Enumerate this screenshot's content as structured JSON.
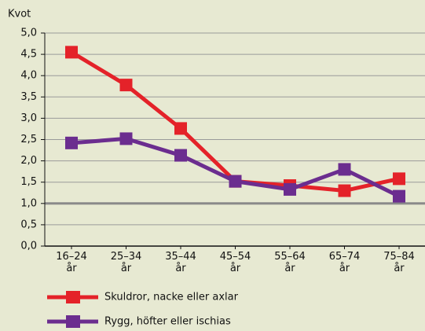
{
  "chart_data": {
    "type": "line",
    "y_label": "Kvot",
    "categories": [
      "16–24 år",
      "25–34 år",
      "35–44 år",
      "45–54 år",
      "55–64 år",
      "65–74 år",
      "75–84 år"
    ],
    "series": [
      {
        "name": "Skuldror, nacke eller axlar",
        "color": "#e42229",
        "values": [
          4.55,
          3.78,
          2.76,
          1.52,
          1.42,
          1.3,
          1.58
        ]
      },
      {
        "name": "Rygg, höfter eller ischias",
        "color": "#6b2d8f",
        "values": [
          2.42,
          2.52,
          2.13,
          1.52,
          1.33,
          1.8,
          1.17
        ]
      }
    ],
    "ylim": [
      0,
      5
    ],
    "yticks": [
      {
        "value": 0,
        "label": "0,0"
      },
      {
        "value": 0.5,
        "label": "0,5"
      },
      {
        "value": 1,
        "label": "1,0"
      },
      {
        "value": 1.5,
        "label": "1,5"
      },
      {
        "value": 2,
        "label": "2,0"
      },
      {
        "value": 2.5,
        "label": "2,5"
      },
      {
        "value": 3,
        "label": "3,0"
      },
      {
        "value": 3.5,
        "label": "3,5"
      },
      {
        "value": 4,
        "label": "4,0"
      },
      {
        "value": 4.5,
        "label": "4,5"
      },
      {
        "value": 5,
        "label": "5,0"
      }
    ],
    "reference_line": 1,
    "grid": true
  }
}
